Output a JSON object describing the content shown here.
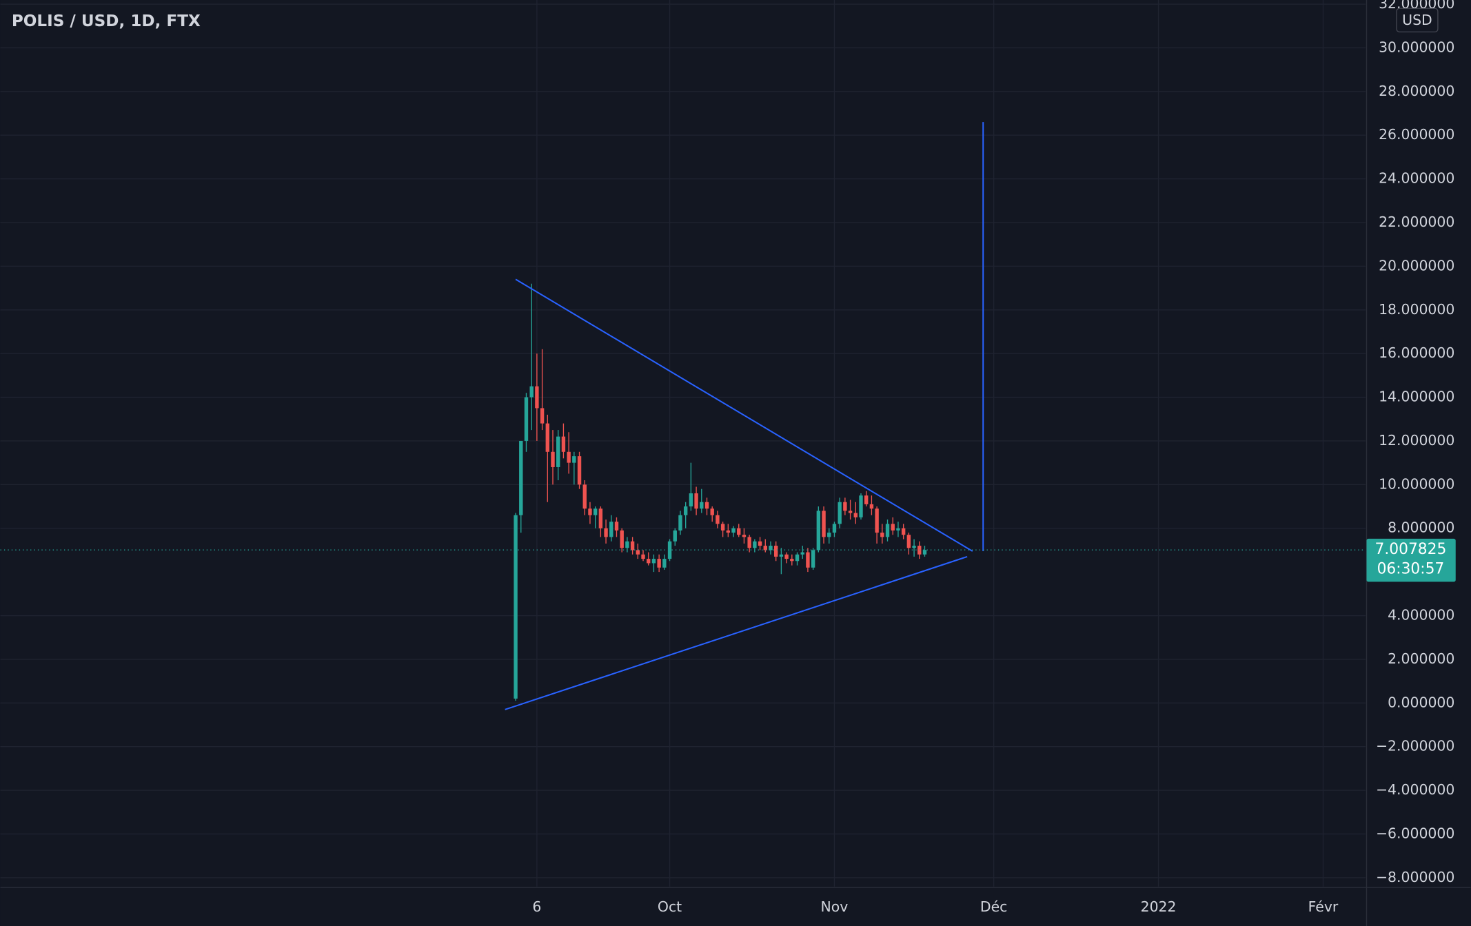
{
  "chart_data": {
    "type": "candlestick",
    "title": "POLIS / USD, 1D, FTX",
    "currency": "USD",
    "up_color": "#26a69a",
    "down_color": "#ef5350",
    "grid": true,
    "xlim": [
      "2021-05-28",
      "2022-02-09"
    ],
    "xticks": [
      {
        "value": "2021-09-06",
        "label": "6"
      },
      {
        "value": "2021-10-01",
        "label": "Oct"
      },
      {
        "value": "2021-11-01",
        "label": "Nov"
      },
      {
        "value": "2021-12-01",
        "label": "Déc"
      },
      {
        "value": "2022-01-01",
        "label": "2022"
      },
      {
        "value": "2022-02-01",
        "label": "Févr"
      }
    ],
    "ylim": [
      -8.41,
      32.19
    ],
    "yticks": [
      {
        "value": -8,
        "label": "−8.000000"
      },
      {
        "value": -6,
        "label": "−6.000000"
      },
      {
        "value": -4,
        "label": "−4.000000"
      },
      {
        "value": -2,
        "label": "−2.000000"
      },
      {
        "value": 0,
        "label": "0.000000"
      },
      {
        "value": 2,
        "label": "2.000000"
      },
      {
        "value": 4,
        "label": "4.000000"
      },
      {
        "value": 8,
        "label": "8.000000"
      },
      {
        "value": 10,
        "label": "10.000000"
      },
      {
        "value": 12,
        "label": "12.000000"
      },
      {
        "value": 14,
        "label": "14.000000"
      },
      {
        "value": 16,
        "label": "16.000000"
      },
      {
        "value": 18,
        "label": "18.000000"
      },
      {
        "value": 20,
        "label": "20.000000"
      },
      {
        "value": 22,
        "label": "22.000000"
      },
      {
        "value": 24,
        "label": "24.000000"
      },
      {
        "value": 26,
        "label": "26.000000"
      },
      {
        "value": 28,
        "label": "28.000000"
      },
      {
        "value": 30,
        "label": "30.000000"
      },
      {
        "value": 32,
        "label": "32.000000"
      }
    ],
    "last_price": 7.007825,
    "countdown": "06:30:57",
    "x": [
      "2021-09-02",
      "2021-09-03",
      "2021-09-04",
      "2021-09-05",
      "2021-09-06",
      "2021-09-07",
      "2021-09-08",
      "2021-09-09",
      "2021-09-10",
      "2021-09-11",
      "2021-09-12",
      "2021-09-13",
      "2021-09-14",
      "2021-09-15",
      "2021-09-16",
      "2021-09-17",
      "2021-09-18",
      "2021-09-19",
      "2021-09-20",
      "2021-09-21",
      "2021-09-22",
      "2021-09-23",
      "2021-09-24",
      "2021-09-25",
      "2021-09-26",
      "2021-09-27",
      "2021-09-28",
      "2021-09-29",
      "2021-09-30",
      "2021-10-01",
      "2021-10-02",
      "2021-10-03",
      "2021-10-04",
      "2021-10-05",
      "2021-10-06",
      "2021-10-07",
      "2021-10-08",
      "2021-10-09",
      "2021-10-10",
      "2021-10-11",
      "2021-10-12",
      "2021-10-13",
      "2021-10-14",
      "2021-10-15",
      "2021-10-16",
      "2021-10-17",
      "2021-10-18",
      "2021-10-19",
      "2021-10-20",
      "2021-10-21",
      "2021-10-22",
      "2021-10-23",
      "2021-10-24",
      "2021-10-25",
      "2021-10-26",
      "2021-10-27",
      "2021-10-28",
      "2021-10-29",
      "2021-10-30",
      "2021-10-31",
      "2021-11-01",
      "2021-11-02",
      "2021-11-03",
      "2021-11-04",
      "2021-11-05",
      "2021-11-06",
      "2021-11-07",
      "2021-11-08",
      "2021-11-09",
      "2021-11-10",
      "2021-11-11",
      "2021-11-12",
      "2021-11-13",
      "2021-11-14",
      "2021-11-15",
      "2021-11-16",
      "2021-11-17",
      "2021-11-18"
    ],
    "open": [
      0.2,
      8.6,
      12,
      14,
      14.5,
      13.5,
      12.8,
      11.5,
      10.8,
      12.2,
      11.5,
      11,
      11.3,
      10,
      8.9,
      8.6,
      8.9,
      8,
      7.6,
      8.3,
      7.9,
      7.1,
      7.4,
      7,
      6.8,
      6.6,
      6.4,
      6.6,
      6.2,
      6.6,
      7.4,
      7.9,
      8.6,
      9,
      9.6,
      8.9,
      9.2,
      8.9,
      8.6,
      8.2,
      7.9,
      7.8,
      8,
      7.7,
      7.6,
      7.1,
      7.4,
      7.2,
      7,
      7.2,
      6.7,
      6.8,
      6.6,
      6.5,
      6.8,
      6.9,
      6.2,
      7,
      8.8,
      7.6,
      7.8,
      8.2,
      9.2,
      8.8,
      8.7,
      8.5,
      9.5,
      9.1,
      8.9,
      7.8,
      7.6,
      8.2,
      7.9,
      8,
      7.7,
      7.1,
      7.2,
      6.8
    ],
    "high": [
      8.7,
      12,
      14.2,
      19.2,
      16,
      16.2,
      13.2,
      12.5,
      12.5,
      12.8,
      12.4,
      11.5,
      11.5,
      10.2,
      9.2,
      9,
      9,
      8.4,
      8.6,
      8.5,
      8,
      7.6,
      7.6,
      7.3,
      7,
      6.9,
      6.8,
      6.8,
      6.8,
      7.5,
      8,
      8.8,
      9.2,
      11,
      9.9,
      9.8,
      9.4,
      9,
      8.8,
      8.3,
      8.2,
      8.1,
      8.2,
      8,
      7.7,
      7.5,
      7.6,
      7.5,
      7.4,
      7.4,
      7.1,
      6.9,
      6.8,
      6.9,
      7.2,
      7.1,
      7.1,
      9,
      9,
      8,
      8.3,
      9.4,
      9.4,
      9.3,
      9.2,
      9.6,
      9.7,
      9.5,
      9,
      8.2,
      8.4,
      8.5,
      8.3,
      8.2,
      7.8,
      7.5,
      7.4,
      7.2
    ],
    "low": [
      0.1,
      7.8,
      11.5,
      12.5,
      12,
      12.5,
      9.2,
      10,
      10.2,
      11.2,
      10.5,
      10,
      9.8,
      8.6,
      8.2,
      8,
      7.6,
      7.3,
      7.4,
      7.6,
      6.9,
      6.9,
      6.8,
      6.6,
      6.5,
      6.3,
      6,
      6,
      6.1,
      6.5,
      7.2,
      7.7,
      8,
      8.8,
      8.6,
      8.7,
      8.6,
      8.3,
      8,
      7.6,
      7.6,
      7.6,
      7.6,
      7.3,
      6.9,
      6.9,
      7,
      6.9,
      6.8,
      6.5,
      5.9,
      6.4,
      6.3,
      6.3,
      6.6,
      6,
      6.1,
      6.9,
      7.3,
      7.3,
      7.6,
      8,
      8.6,
      8.4,
      8.2,
      8.4,
      9,
      8.6,
      7.3,
      7.3,
      7.4,
      7.7,
      7.6,
      7.5,
      6.8,
      6.7,
      6.6,
      6.7
    ],
    "close": [
      8.6,
      12,
      14,
      14.5,
      13.5,
      12.8,
      11.5,
      10.8,
      12.2,
      11.5,
      11,
      11.3,
      10,
      8.9,
      8.6,
      8.9,
      8,
      7.6,
      8.3,
      7.9,
      7.1,
      7.4,
      7,
      6.8,
      6.6,
      6.4,
      6.6,
      6.2,
      6.6,
      7.4,
      7.9,
      8.6,
      9,
      9.6,
      8.9,
      9.2,
      8.9,
      8.6,
      8.2,
      7.9,
      7.8,
      8,
      7.7,
      7.6,
      7.1,
      7.4,
      7.2,
      7,
      7.2,
      6.7,
      6.8,
      6.6,
      6.5,
      6.8,
      6.9,
      6.2,
      7,
      8.8,
      7.6,
      7.8,
      8.2,
      9.2,
      8.8,
      8.7,
      8.5,
      9.5,
      9.1,
      8.9,
      7.8,
      7.6,
      8.2,
      7.9,
      8,
      7.7,
      7.1,
      7.2,
      6.8,
      7.007825
    ],
    "drawings": [
      {
        "color": "#2962ff",
        "points": [
          {
            "x": "2021-09-02",
            "y": 19.4
          },
          {
            "x": "2021-11-27",
            "y": 6.95
          }
        ]
      },
      {
        "color": "#2962ff",
        "points": [
          {
            "x": "2021-08-31",
            "y": -0.3
          },
          {
            "x": "2021-11-26",
            "y": 6.7
          }
        ]
      },
      {
        "color": "#2962ff",
        "points": [
          {
            "x": "2021-11-29",
            "y": 26.6
          },
          {
            "x": "2021-11-29",
            "y": 6.95
          }
        ]
      }
    ]
  }
}
